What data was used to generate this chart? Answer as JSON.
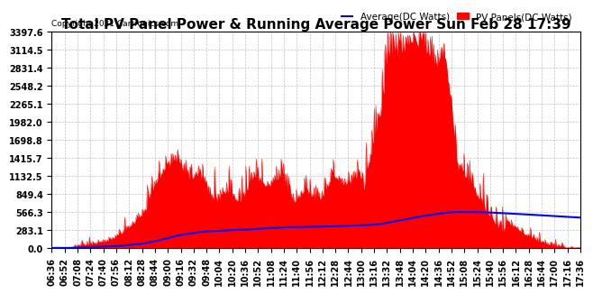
{
  "title": "Total PV Panel Power & Running Average Power Sun Feb 28 17:39",
  "copyright": "Copyright 2021 Cartronics.com",
  "legend_avg": "Average(DC Watts)",
  "legend_pv": "PV Panels(DC Watts)",
  "yticks": [
    0.0,
    283.1,
    566.3,
    849.4,
    1132.5,
    1415.7,
    1698.8,
    1982.0,
    2265.1,
    2548.2,
    2831.4,
    3114.5,
    3397.6
  ],
  "ymax": 3397.6,
  "ymin": 0.0,
  "bg_color": "#ffffff",
  "grid_color": "#aaaaaa",
  "pv_color": "#ff0000",
  "avg_color": "#0000ff",
  "fill_color": "#ff0000",
  "title_fontsize": 11,
  "tick_fontsize": 7.0,
  "xtick_labels": [
    "06:36",
    "06:52",
    "07:08",
    "07:24",
    "07:40",
    "07:56",
    "08:12",
    "08:28",
    "08:44",
    "09:00",
    "09:16",
    "09:32",
    "09:48",
    "10:04",
    "10:20",
    "10:36",
    "10:52",
    "11:08",
    "11:24",
    "11:40",
    "11:56",
    "12:12",
    "12:28",
    "12:44",
    "13:00",
    "13:16",
    "13:32",
    "13:48",
    "14:04",
    "14:20",
    "14:36",
    "14:52",
    "15:08",
    "15:24",
    "15:40",
    "15:56",
    "16:12",
    "16:28",
    "16:44",
    "17:00",
    "17:16",
    "17:36"
  ],
  "num_points": 660
}
